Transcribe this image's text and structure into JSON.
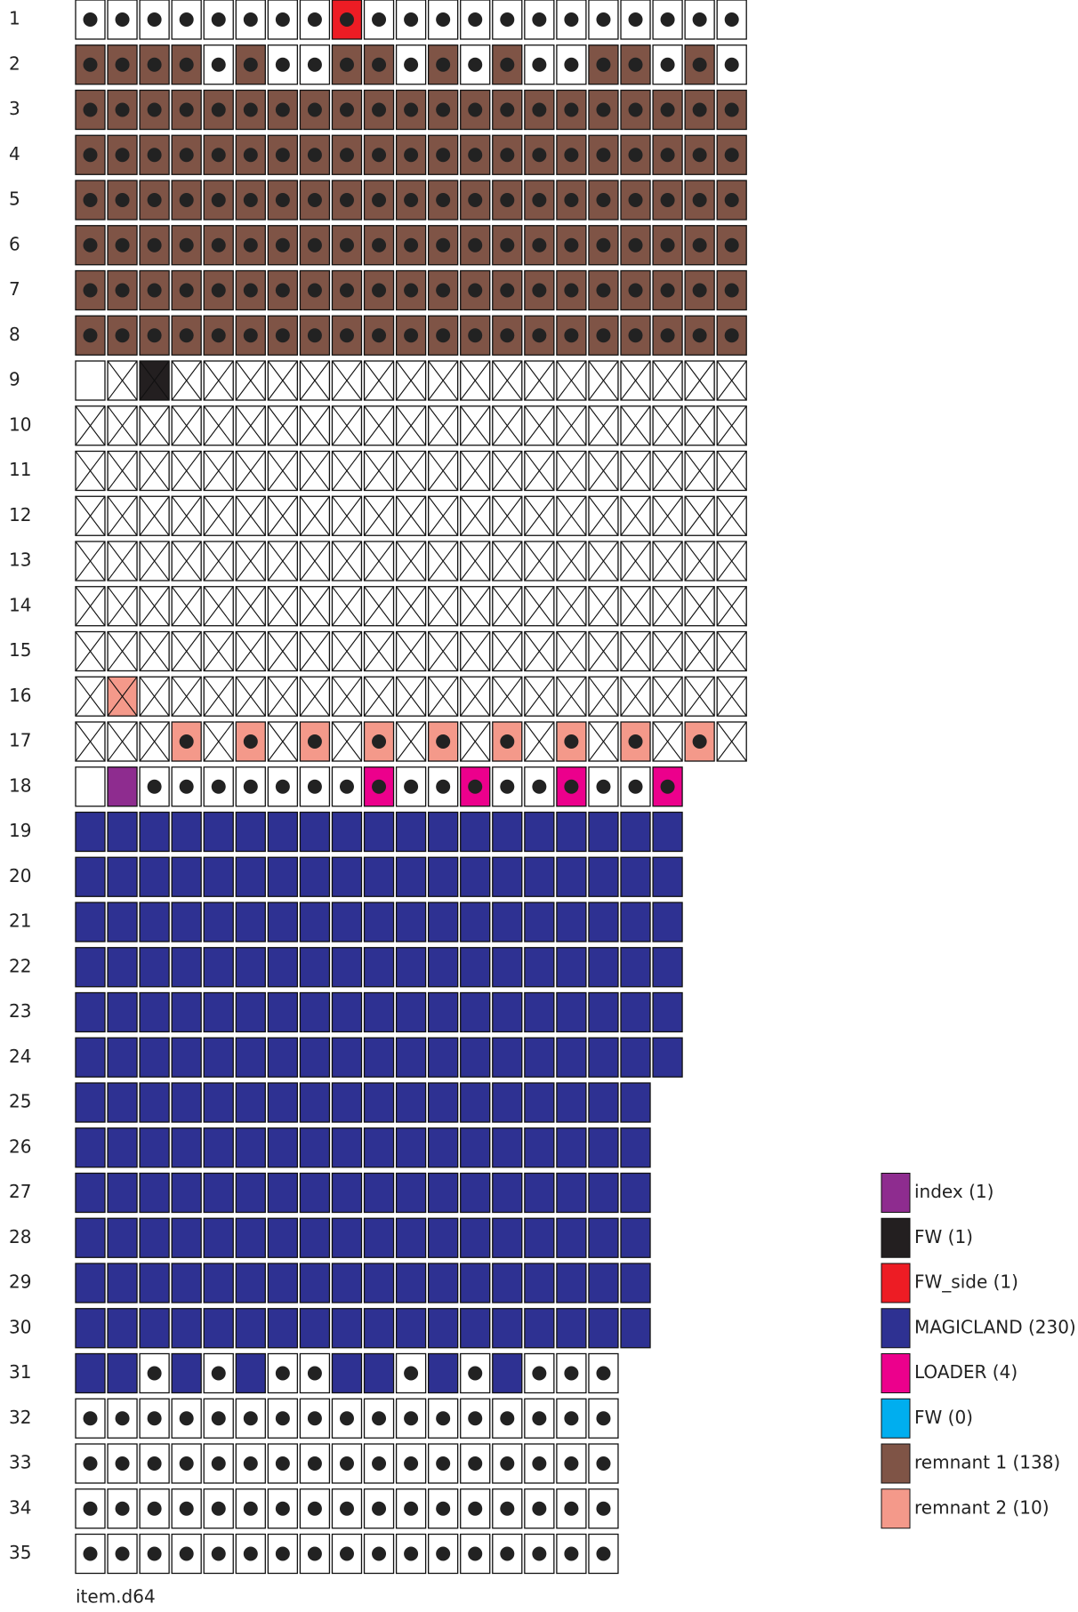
{
  "rows": [
    {
      "label": "1",
      "cells": [
        "wd",
        "wd",
        "wd",
        "wd",
        "wd",
        "wd",
        "wd",
        "wd",
        "2d",
        "wd",
        "wd",
        "wd",
        "wd",
        "wd",
        "wd",
        "wd",
        "wd",
        "wd",
        "wd",
        "wd",
        "wd"
      ]
    },
    {
      "label": "2",
      "cells": [
        "6d",
        "6d",
        "6d",
        "6d",
        "wd",
        "6d",
        "wd",
        "wd",
        "6d",
        "6d",
        "wd",
        "6d",
        "wd",
        "6d",
        "wd",
        "wd",
        "6d",
        "6d",
        "wd",
        "6d",
        "wd"
      ]
    },
    {
      "label": "3",
      "cells": [
        "6d",
        "6d",
        "6d",
        "6d",
        "6d",
        "6d",
        "6d",
        "6d",
        "6d",
        "6d",
        "6d",
        "6d",
        "6d",
        "6d",
        "6d",
        "6d",
        "6d",
        "6d",
        "6d",
        "6d",
        "6d"
      ]
    },
    {
      "label": "4",
      "cells": [
        "6d",
        "6d",
        "6d",
        "6d",
        "6d",
        "6d",
        "6d",
        "6d",
        "6d",
        "6d",
        "6d",
        "6d",
        "6d",
        "6d",
        "6d",
        "6d",
        "6d",
        "6d",
        "6d",
        "6d",
        "6d"
      ]
    },
    {
      "label": "5",
      "cells": [
        "6d",
        "6d",
        "6d",
        "6d",
        "6d",
        "6d",
        "6d",
        "6d",
        "6d",
        "6d",
        "6d",
        "6d",
        "6d",
        "6d",
        "6d",
        "6d",
        "6d",
        "6d",
        "6d",
        "6d",
        "6d"
      ]
    },
    {
      "label": "6",
      "cells": [
        "6d",
        "6d",
        "6d",
        "6d",
        "6d",
        "6d",
        "6d",
        "6d",
        "6d",
        "6d",
        "6d",
        "6d",
        "6d",
        "6d",
        "6d",
        "6d",
        "6d",
        "6d",
        "6d",
        "6d",
        "6d"
      ]
    },
    {
      "label": "7",
      "cells": [
        "6d",
        "6d",
        "6d",
        "6d",
        "6d",
        "6d",
        "6d",
        "6d",
        "6d",
        "6d",
        "6d",
        "6d",
        "6d",
        "6d",
        "6d",
        "6d",
        "6d",
        "6d",
        "6d",
        "6d",
        "6d"
      ]
    },
    {
      "label": "8",
      "cells": [
        "6d",
        "6d",
        "6d",
        "6d",
        "6d",
        "6d",
        "6d",
        "6d",
        "6d",
        "6d",
        "6d",
        "6d",
        "6d",
        "6d",
        "6d",
        "6d",
        "6d",
        "6d",
        "6d",
        "6d",
        "6d"
      ]
    },
    {
      "label": "9",
      "cells": [
        "w-",
        "wx",
        "1x",
        "wx",
        "wx",
        "wx",
        "wx",
        "wx",
        "wx",
        "wx",
        "wx",
        "wx",
        "wx",
        "wx",
        "wx",
        "wx",
        "wx",
        "wx",
        "wx",
        "wx",
        "wx"
      ]
    },
    {
      "label": "10",
      "cells": [
        "wx",
        "wx",
        "wx",
        "wx",
        "wx",
        "wx",
        "wx",
        "wx",
        "wx",
        "wx",
        "wx",
        "wx",
        "wx",
        "wx",
        "wx",
        "wx",
        "wx",
        "wx",
        "wx",
        "wx",
        "wx"
      ]
    },
    {
      "label": "11",
      "cells": [
        "wx",
        "wx",
        "wx",
        "wx",
        "wx",
        "wx",
        "wx",
        "wx",
        "wx",
        "wx",
        "wx",
        "wx",
        "wx",
        "wx",
        "wx",
        "wx",
        "wx",
        "wx",
        "wx",
        "wx",
        "wx"
      ]
    },
    {
      "label": "12",
      "cells": [
        "wx",
        "wx",
        "wx",
        "wx",
        "wx",
        "wx",
        "wx",
        "wx",
        "wx",
        "wx",
        "wx",
        "wx",
        "wx",
        "wx",
        "wx",
        "wx",
        "wx",
        "wx",
        "wx",
        "wx",
        "wx"
      ]
    },
    {
      "label": "13",
      "cells": [
        "wx",
        "wx",
        "wx",
        "wx",
        "wx",
        "wx",
        "wx",
        "wx",
        "wx",
        "wx",
        "wx",
        "wx",
        "wx",
        "wx",
        "wx",
        "wx",
        "wx",
        "wx",
        "wx",
        "wx",
        "wx"
      ]
    },
    {
      "label": "14",
      "cells": [
        "wx",
        "wx",
        "wx",
        "wx",
        "wx",
        "wx",
        "wx",
        "wx",
        "wx",
        "wx",
        "wx",
        "wx",
        "wx",
        "wx",
        "wx",
        "wx",
        "wx",
        "wx",
        "wx",
        "wx",
        "wx"
      ]
    },
    {
      "label": "15",
      "cells": [
        "wx",
        "wx",
        "wx",
        "wx",
        "wx",
        "wx",
        "wx",
        "wx",
        "wx",
        "wx",
        "wx",
        "wx",
        "wx",
        "wx",
        "wx",
        "wx",
        "wx",
        "wx",
        "wx",
        "wx",
        "wx"
      ]
    },
    {
      "label": "16",
      "cells": [
        "wx",
        "7x",
        "wx",
        "wx",
        "wx",
        "wx",
        "wx",
        "wx",
        "wx",
        "wx",
        "wx",
        "wx",
        "wx",
        "wx",
        "wx",
        "wx",
        "wx",
        "wx",
        "wx",
        "wx",
        "wx"
      ]
    },
    {
      "label": "17",
      "cells": [
        "wx",
        "wx",
        "wx",
        "7d",
        "wx",
        "7d",
        "wx",
        "7d",
        "wx",
        "7d",
        "wx",
        "7d",
        "wx",
        "7d",
        "wx",
        "7d",
        "wx",
        "7d",
        "wx",
        "7d",
        "wx"
      ]
    },
    {
      "label": "18",
      "cells": [
        "w-",
        "0-",
        "wd",
        "wd",
        "wd",
        "wd",
        "wd",
        "wd",
        "wd",
        "4d",
        "wd",
        "wd",
        "4d",
        "wd",
        "wd",
        "4d",
        "wd",
        "wd",
        "4d"
      ]
    },
    {
      "label": "19",
      "cells": [
        "3-",
        "3-",
        "3-",
        "3-",
        "3-",
        "3-",
        "3-",
        "3-",
        "3-",
        "3-",
        "3-",
        "3-",
        "3-",
        "3-",
        "3-",
        "3-",
        "3-",
        "3-",
        "3-"
      ]
    },
    {
      "label": "20",
      "cells": [
        "3-",
        "3-",
        "3-",
        "3-",
        "3-",
        "3-",
        "3-",
        "3-",
        "3-",
        "3-",
        "3-",
        "3-",
        "3-",
        "3-",
        "3-",
        "3-",
        "3-",
        "3-",
        "3-"
      ]
    },
    {
      "label": "21",
      "cells": [
        "3-",
        "3-",
        "3-",
        "3-",
        "3-",
        "3-",
        "3-",
        "3-",
        "3-",
        "3-",
        "3-",
        "3-",
        "3-",
        "3-",
        "3-",
        "3-",
        "3-",
        "3-",
        "3-"
      ]
    },
    {
      "label": "22",
      "cells": [
        "3-",
        "3-",
        "3-",
        "3-",
        "3-",
        "3-",
        "3-",
        "3-",
        "3-",
        "3-",
        "3-",
        "3-",
        "3-",
        "3-",
        "3-",
        "3-",
        "3-",
        "3-",
        "3-"
      ]
    },
    {
      "label": "23",
      "cells": [
        "3-",
        "3-",
        "3-",
        "3-",
        "3-",
        "3-",
        "3-",
        "3-",
        "3-",
        "3-",
        "3-",
        "3-",
        "3-",
        "3-",
        "3-",
        "3-",
        "3-",
        "3-",
        "3-"
      ]
    },
    {
      "label": "24",
      "cells": [
        "3-",
        "3-",
        "3-",
        "3-",
        "3-",
        "3-",
        "3-",
        "3-",
        "3-",
        "3-",
        "3-",
        "3-",
        "3-",
        "3-",
        "3-",
        "3-",
        "3-",
        "3-",
        "3-"
      ]
    },
    {
      "label": "25",
      "cells": [
        "3-",
        "3-",
        "3-",
        "3-",
        "3-",
        "3-",
        "3-",
        "3-",
        "3-",
        "3-",
        "3-",
        "3-",
        "3-",
        "3-",
        "3-",
        "3-",
        "3-",
        "3-"
      ]
    },
    {
      "label": "26",
      "cells": [
        "3-",
        "3-",
        "3-",
        "3-",
        "3-",
        "3-",
        "3-",
        "3-",
        "3-",
        "3-",
        "3-",
        "3-",
        "3-",
        "3-",
        "3-",
        "3-",
        "3-",
        "3-"
      ]
    },
    {
      "label": "27",
      "cells": [
        "3-",
        "3-",
        "3-",
        "3-",
        "3-",
        "3-",
        "3-",
        "3-",
        "3-",
        "3-",
        "3-",
        "3-",
        "3-",
        "3-",
        "3-",
        "3-",
        "3-",
        "3-"
      ]
    },
    {
      "label": "28",
      "cells": [
        "3-",
        "3-",
        "3-",
        "3-",
        "3-",
        "3-",
        "3-",
        "3-",
        "3-",
        "3-",
        "3-",
        "3-",
        "3-",
        "3-",
        "3-",
        "3-",
        "3-",
        "3-"
      ]
    },
    {
      "label": "29",
      "cells": [
        "3-",
        "3-",
        "3-",
        "3-",
        "3-",
        "3-",
        "3-",
        "3-",
        "3-",
        "3-",
        "3-",
        "3-",
        "3-",
        "3-",
        "3-",
        "3-",
        "3-",
        "3-"
      ]
    },
    {
      "label": "30",
      "cells": [
        "3-",
        "3-",
        "3-",
        "3-",
        "3-",
        "3-",
        "3-",
        "3-",
        "3-",
        "3-",
        "3-",
        "3-",
        "3-",
        "3-",
        "3-",
        "3-",
        "3-",
        "3-"
      ]
    },
    {
      "label": "31",
      "cells": [
        "3-",
        "3-",
        "wd",
        "3-",
        "wd",
        "3-",
        "wd",
        "wd",
        "3-",
        "3-",
        "wd",
        "3-",
        "wd",
        "3-",
        "wd",
        "wd",
        "wd"
      ]
    },
    {
      "label": "32",
      "cells": [
        "wd",
        "wd",
        "wd",
        "wd",
        "wd",
        "wd",
        "wd",
        "wd",
        "wd",
        "wd",
        "wd",
        "wd",
        "wd",
        "wd",
        "wd",
        "wd",
        "wd"
      ]
    },
    {
      "label": "33",
      "cells": [
        "wd",
        "wd",
        "wd",
        "wd",
        "wd",
        "wd",
        "wd",
        "wd",
        "wd",
        "wd",
        "wd",
        "wd",
        "wd",
        "wd",
        "wd",
        "wd",
        "wd"
      ]
    },
    {
      "label": "34",
      "cells": [
        "wd",
        "wd",
        "wd",
        "wd",
        "wd",
        "wd",
        "wd",
        "wd",
        "wd",
        "wd",
        "wd",
        "wd",
        "wd",
        "wd",
        "wd",
        "wd",
        "wd"
      ]
    },
    {
      "label": "35",
      "cells": [
        "wd",
        "wd",
        "wd",
        "wd",
        "wd",
        "wd",
        "wd",
        "wd",
        "wd",
        "wd",
        "wd",
        "wd",
        "wd",
        "wd",
        "wd",
        "wd",
        "wd"
      ]
    }
  ],
  "legend": [
    {
      "label": "index (1)",
      "color": "#8e2c8f"
    },
    {
      "label": "FW (1)",
      "color": "#231f20"
    },
    {
      "label": "FW_side (1)",
      "color": "#ed1c24"
    },
    {
      "label": "MAGICLAND (230)",
      "color": "#2e3192"
    },
    {
      "label": "LOADER (4)",
      "color": "#ec008c"
    },
    {
      "label": "FW (0)",
      "color": "#00aeef"
    },
    {
      "label": "remnant 1 (138)",
      "color": "#7f5446"
    },
    {
      "label": "remnant 2 (10)",
      "color": "#f4998a"
    }
  ],
  "footer": "item.d64"
}
